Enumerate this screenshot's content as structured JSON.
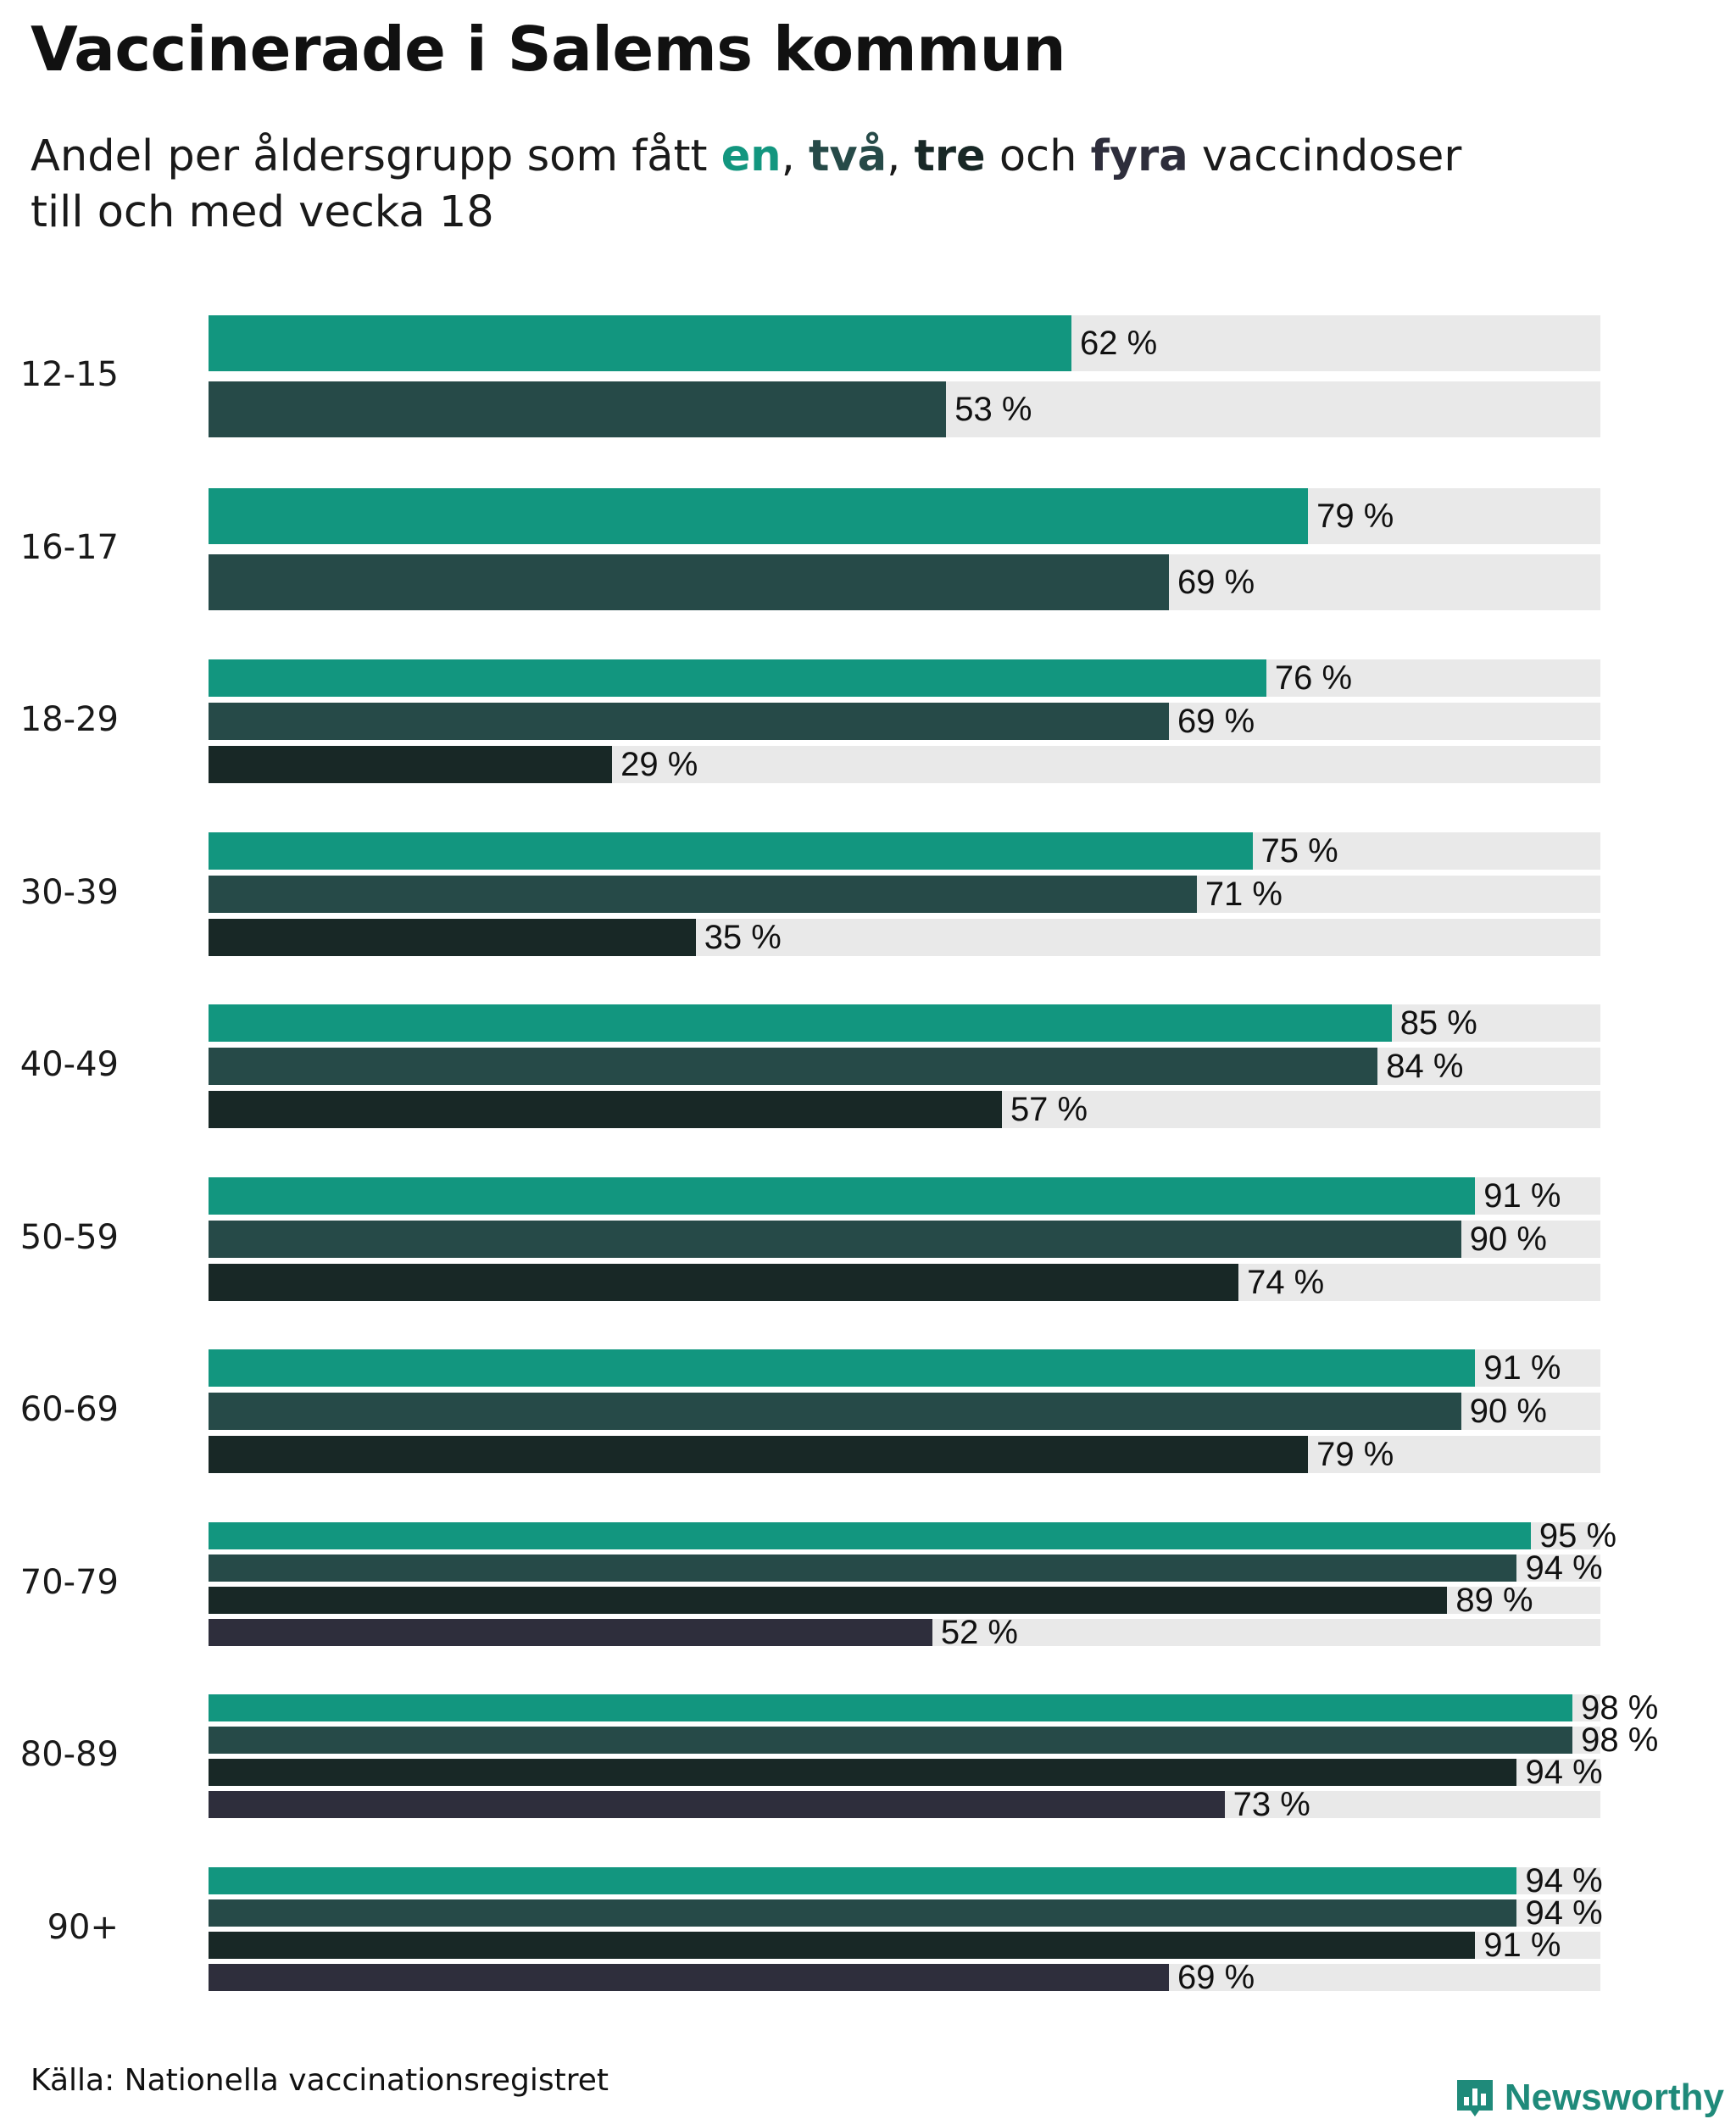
{
  "title": "Vaccinerade i Salems kommun",
  "subtitle": {
    "prefix": "Andel per åldersgrupp som fått ",
    "k1": "en",
    "sep1": ", ",
    "k2": "två",
    "sep2": ", ",
    "k3": "tre",
    "sep3": " och ",
    "k4": "fyra",
    "suffix": " vaccindoser",
    "line2": "till och med vecka 18"
  },
  "colors": {
    "dose1": "#12967f",
    "dose2": "#264a48",
    "dose3": "#182826",
    "dose4": "#2e2e3c",
    "track": "#e9e9e9"
  },
  "value_suffix": " %",
  "chart_data": {
    "type": "bar",
    "orientation": "horizontal",
    "title": "Vaccinerade i Salems kommun",
    "xlim": [
      0,
      100
    ],
    "unit": "%",
    "series_names": [
      "en",
      "två",
      "tre",
      "fyra"
    ],
    "groups": [
      {
        "label": "12-15",
        "values": [
          62,
          53
        ]
      },
      {
        "label": "16-17",
        "values": [
          79,
          69
        ]
      },
      {
        "label": "18-29",
        "values": [
          76,
          69,
          29
        ]
      },
      {
        "label": "30-39",
        "values": [
          75,
          71,
          35
        ]
      },
      {
        "label": "40-49",
        "values": [
          85,
          84,
          57
        ]
      },
      {
        "label": "50-59",
        "values": [
          91,
          90,
          74
        ]
      },
      {
        "label": "60-69",
        "values": [
          91,
          90,
          79
        ]
      },
      {
        "label": "70-79",
        "values": [
          95,
          94,
          89,
          52
        ]
      },
      {
        "label": "80-89",
        "values": [
          98,
          98,
          94,
          73
        ]
      },
      {
        "label": "90+",
        "values": [
          94,
          94,
          91,
          69
        ]
      }
    ]
  },
  "source": "Källa: Nationella vaccinationsregistret",
  "brand": "Newsworthy"
}
